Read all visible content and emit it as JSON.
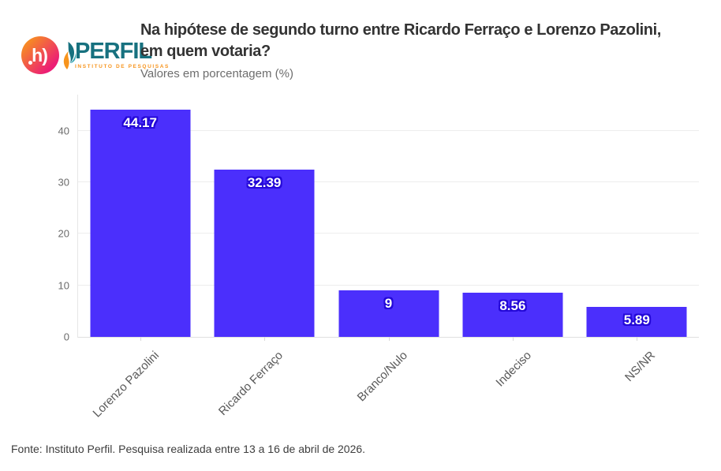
{
  "logo": {
    "monogram": "h)",
    "brand": "PERFIL",
    "tagline": "INSTITUTO DE PESQUISAS"
  },
  "header": {
    "title_line1": "Na hipótese de segundo turno entre Ricardo Ferraço e Lorenzo Pazolini,",
    "title_line2": "em quem votaria?",
    "subtitle": "Valores em porcentagem (%)"
  },
  "footer": {
    "source": "Fonte: Instituto Perfil. Pesquisa realizada entre 13 a 16 de abril de 2026."
  },
  "colors": {
    "bar": "#4B2FFC",
    "bar_label_outline": "#2408D8",
    "brand_teal": "#17717F",
    "brand_orange": "#F7941D",
    "brand_pink": "#EC1E75"
  },
  "chart_data": {
    "type": "bar",
    "title": "Na hipótese de segundo turno entre Ricardo Ferraço e Lorenzo Pazolini, em quem votaria?",
    "subtitle": "Valores em porcentagem (%)",
    "categories": [
      "Lorenzo Pazolini",
      "Ricardo Ferraço",
      "Branco/Nulo",
      "Indeciso",
      "NS/NR"
    ],
    "values": [
      44.17,
      32.39,
      9,
      8.56,
      5.89
    ],
    "value_labels": [
      "44.17",
      "32.39",
      "9",
      "8.56",
      "5.89"
    ],
    "xlabel": "",
    "ylabel": "",
    "ylim": [
      0,
      47
    ],
    "yticks": [
      0,
      10,
      20,
      30,
      40
    ],
    "grid": true,
    "legend": false,
    "bar_color": "#4B2FFC",
    "source": "Fonte: Instituto Perfil. Pesquisa realizada entre 13 a 16 de abril de 2026."
  }
}
